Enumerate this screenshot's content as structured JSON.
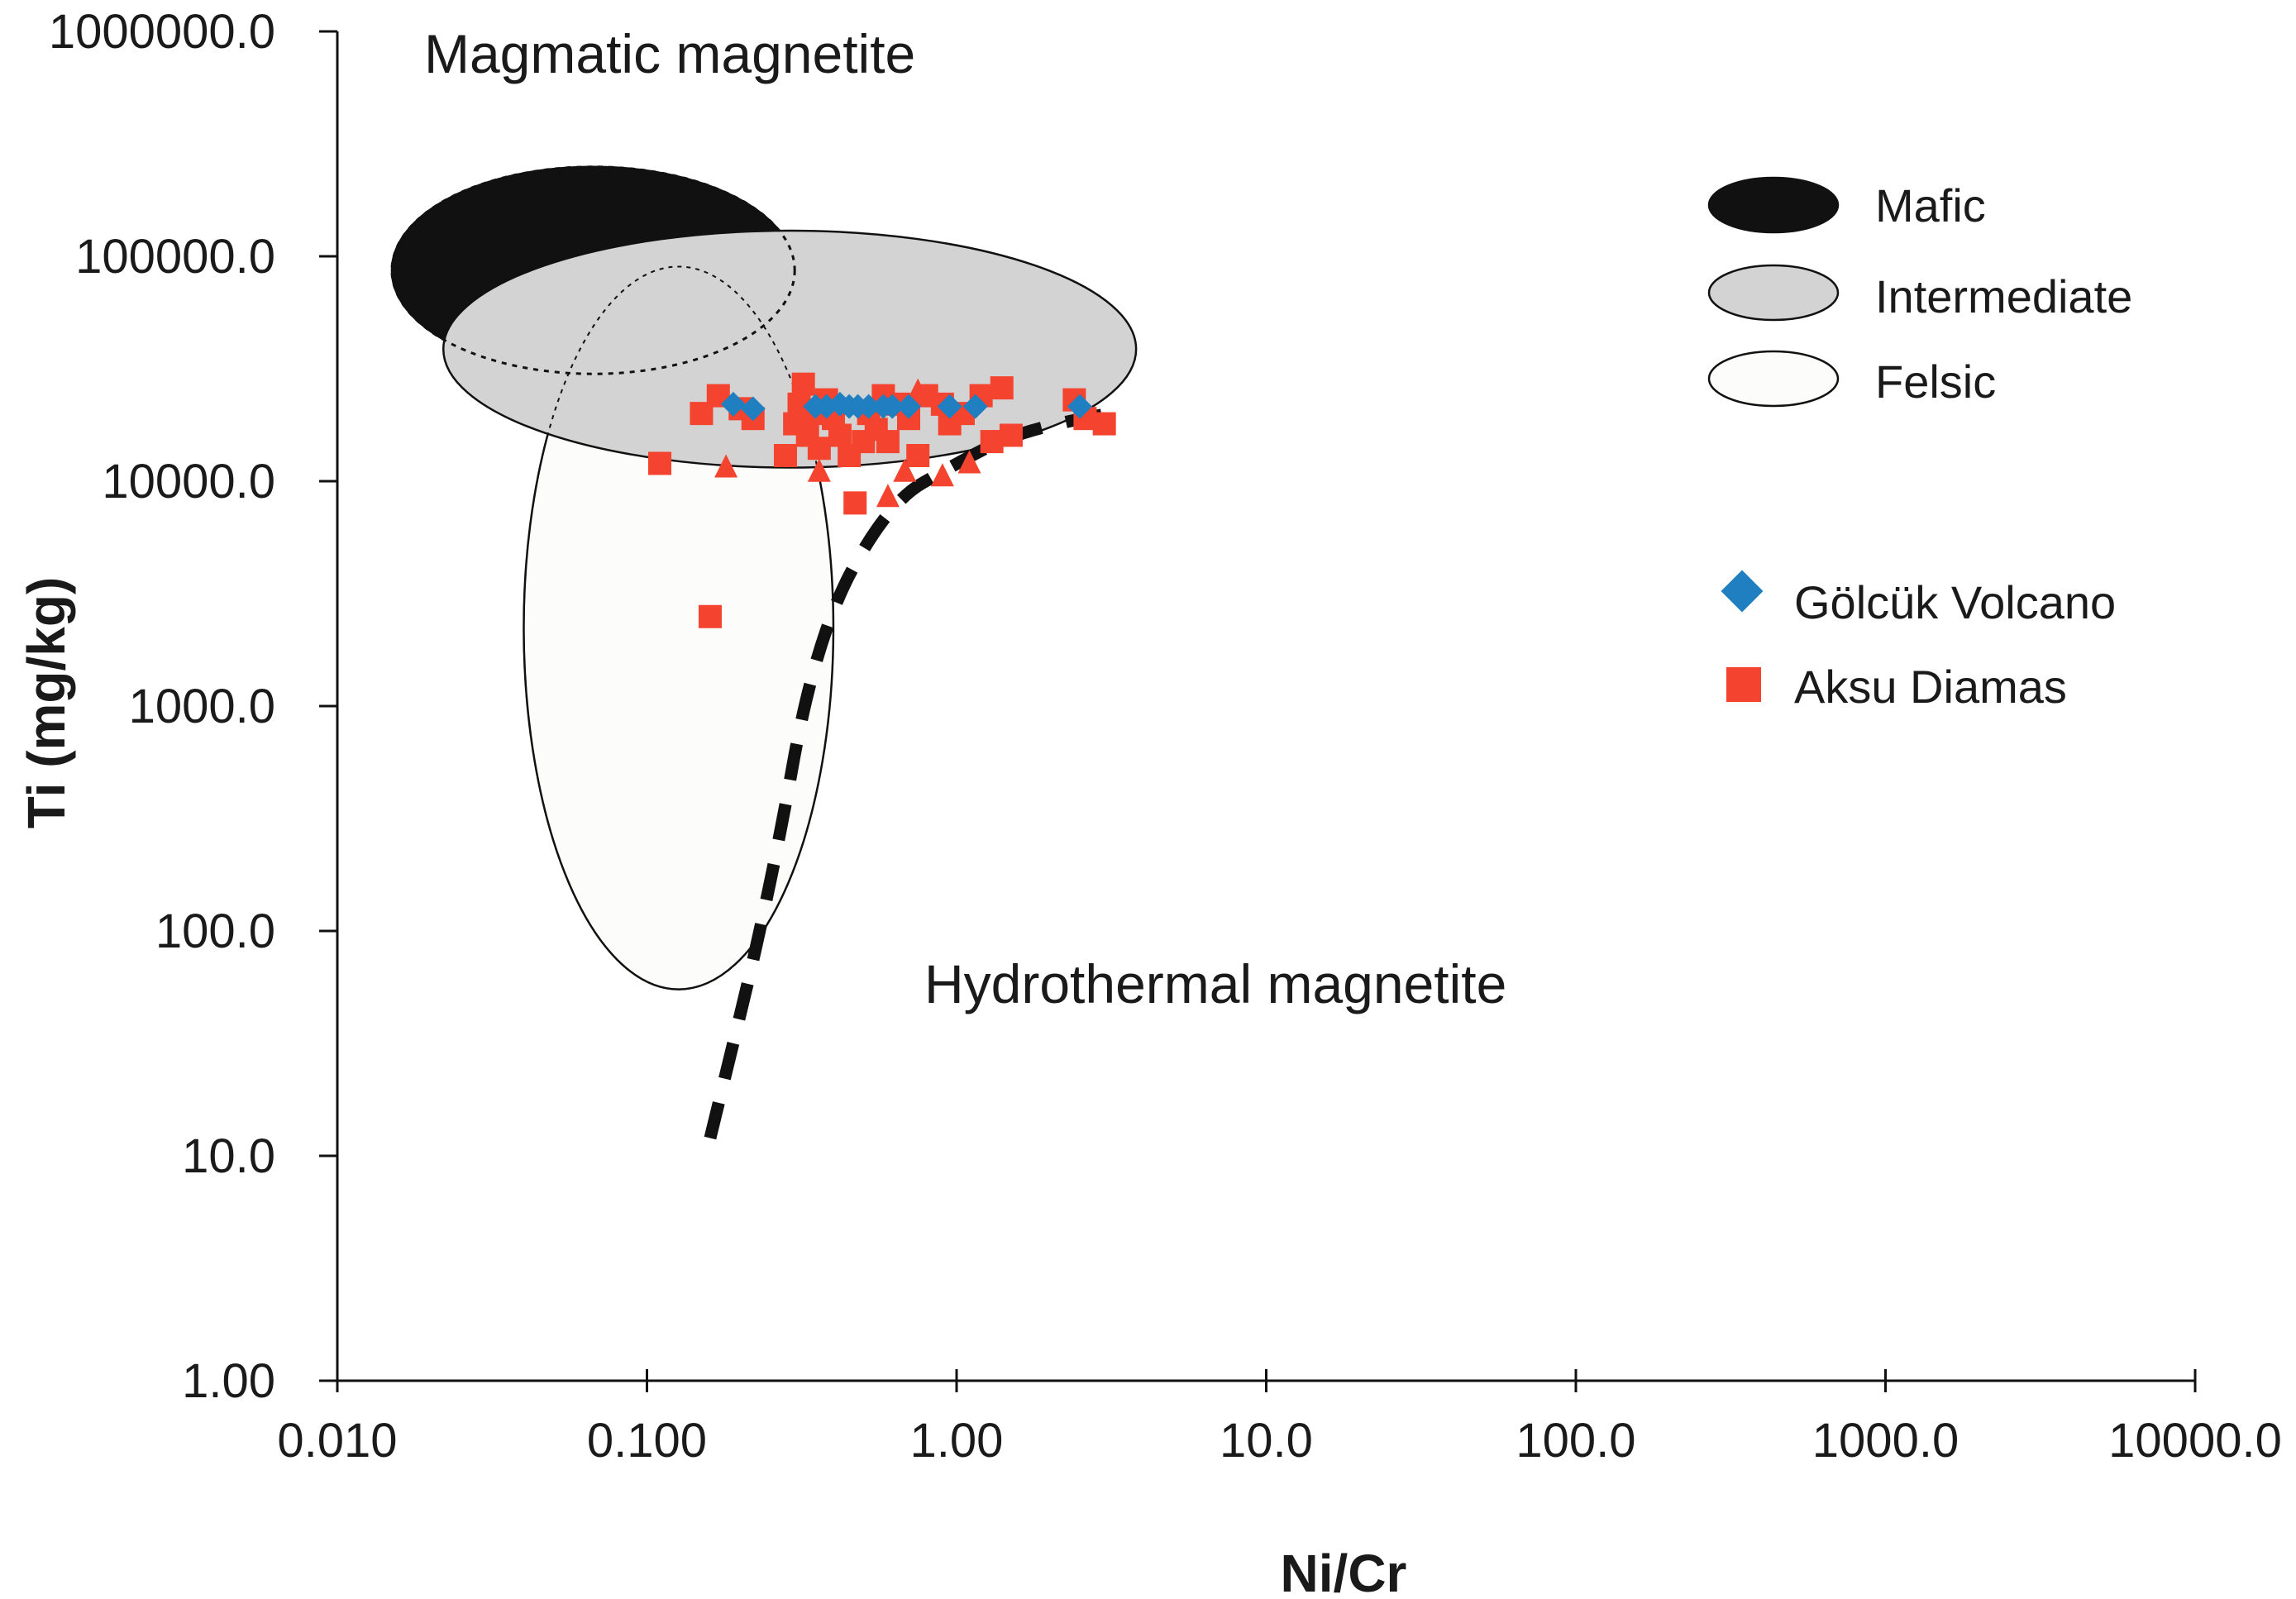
{
  "chart_data": {
    "type": "scatter",
    "xscale": "log",
    "yscale": "log",
    "xlabel": "Ni/Cr",
    "ylabel": "Ti (mg/kg)",
    "xlim": [
      0.01,
      10000
    ],
    "ylim": [
      1,
      1000000
    ],
    "xticks": [
      {
        "value": 0.01,
        "label": "0.010"
      },
      {
        "value": 0.1,
        "label": "0.100"
      },
      {
        "value": 1,
        "label": "1.00"
      },
      {
        "value": 10,
        "label": "10.0"
      },
      {
        "value": 100,
        "label": "100.0"
      },
      {
        "value": 1000,
        "label": "1000.0"
      },
      {
        "value": 10000,
        "label": "10000.0"
      }
    ],
    "yticks": [
      {
        "value": 1,
        "label": "1.00"
      },
      {
        "value": 10,
        "label": "10.0"
      },
      {
        "value": 100,
        "label": "100.0"
      },
      {
        "value": 1000,
        "label": "1000.0"
      },
      {
        "value": 10000,
        "label": "10000.0"
      },
      {
        "value": 100000,
        "label": "100000.0"
      },
      {
        "value": 1000000,
        "label": "1000000.0"
      }
    ],
    "annotations": {
      "magmatic": "Magmatic magnetite",
      "hydrothermal": "Hydrothermal magnetite"
    },
    "fields": [
      {
        "name": "Mafic",
        "fill": "#111111",
        "x_range": [
          0.015,
          0.3
        ],
        "y_range": [
          30000,
          250000
        ]
      },
      {
        "name": "Intermediate",
        "fill": "#d3d3d3",
        "x_range": [
          0.022,
          3.8
        ],
        "y_range": [
          11500,
          130000
        ]
      },
      {
        "name": "Felsic",
        "fill": "#fcfcfa",
        "x_range": [
          0.04,
          0.4
        ],
        "y_range": [
          55,
          90000
        ]
      }
    ],
    "boundary_line": {
      "style": "dashed",
      "color": "#111111",
      "points": [
        [
          0.16,
          12
        ],
        [
          0.25,
          150
        ],
        [
          0.35,
          2000
        ],
        [
          0.6,
          8000
        ],
        [
          1.0,
          12000
        ],
        [
          1.5,
          16000
        ],
        [
          2.5,
          19000
        ],
        [
          3.5,
          20500
        ]
      ]
    },
    "legend": {
      "position": "right",
      "items": [
        {
          "label": "Mafic",
          "kind": "field",
          "fill": "#111111"
        },
        {
          "label": "Intermediate",
          "kind": "field",
          "fill": "#d3d3d3"
        },
        {
          "label": "Felsic",
          "kind": "field",
          "fill": "#fcfcfa"
        },
        {
          "label": "Gölcük Volcano",
          "kind": "marker",
          "marker": "diamond",
          "color": "#1f7fc1"
        },
        {
          "label": "Aksu Diamas",
          "kind": "marker",
          "marker": "square",
          "color": "#f4432e"
        }
      ]
    },
    "series": [
      {
        "name": "Gölcük Volcano",
        "marker": "diamond",
        "color": "#1f7fc1",
        "points": [
          [
            0.19,
            22000
          ],
          [
            0.22,
            21000
          ],
          [
            0.35,
            21500
          ],
          [
            0.38,
            21500
          ],
          [
            0.42,
            22000
          ],
          [
            0.45,
            21500
          ],
          [
            0.48,
            21500
          ],
          [
            0.52,
            21500
          ],
          [
            0.58,
            21500
          ],
          [
            0.62,
            21500
          ],
          [
            0.7,
            21500
          ],
          [
            0.95,
            21500
          ],
          [
            1.15,
            21500
          ],
          [
            2.5,
            21500
          ]
        ]
      },
      {
        "name": "Aksu Diamas",
        "marker": "square",
        "color": "#f4432e",
        "points": [
          [
            0.11,
            12000
          ],
          [
            0.16,
            2500
          ],
          [
            0.15,
            20000
          ],
          [
            0.17,
            24000
          ],
          [
            0.2,
            21000
          ],
          [
            0.22,
            19000
          ],
          [
            0.28,
            13000
          ],
          [
            0.3,
            18000
          ],
          [
            0.31,
            22000
          ],
          [
            0.32,
            27000
          ],
          [
            0.33,
            16000
          ],
          [
            0.35,
            20000
          ],
          [
            0.36,
            14000
          ],
          [
            0.38,
            23000
          ],
          [
            0.4,
            19000
          ],
          [
            0.42,
            16000
          ],
          [
            0.45,
            13000
          ],
          [
            0.47,
            8000
          ],
          [
            0.5,
            15000
          ],
          [
            0.52,
            20000
          ],
          [
            0.55,
            17000
          ],
          [
            0.58,
            24000
          ],
          [
            0.6,
            15000
          ],
          [
            0.65,
            22000
          ],
          [
            0.7,
            19000
          ],
          [
            0.75,
            13000
          ],
          [
            0.8,
            24000
          ],
          [
            0.9,
            22000
          ],
          [
            0.95,
            18000
          ],
          [
            1.05,
            20000
          ],
          [
            1.2,
            24000
          ],
          [
            1.3,
            15000
          ],
          [
            1.4,
            26000
          ],
          [
            1.5,
            16000
          ],
          [
            2.4,
            23000
          ],
          [
            2.6,
            19000
          ],
          [
            3.0,
            18000
          ]
        ]
      },
      {
        "name": "Aksu Diamas (triangles)",
        "marker": "triangle",
        "color": "#f4432e",
        "points": [
          [
            0.18,
            11500
          ],
          [
            0.36,
            11000
          ],
          [
            0.6,
            8500
          ],
          [
            0.68,
            11000
          ],
          [
            0.75,
            25000
          ],
          [
            0.9,
            10500
          ],
          [
            1.1,
            12000
          ]
        ]
      }
    ]
  }
}
